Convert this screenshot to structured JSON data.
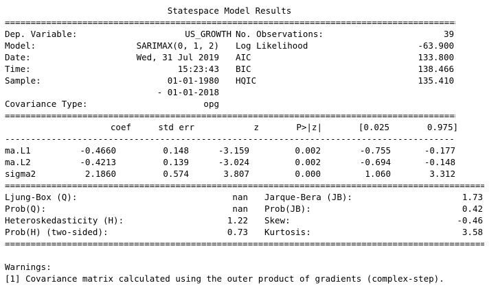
{
  "title": "Statespace Model Results",
  "sep_double": "==================================================================================================================",
  "sep_single": "------------------------------------------------------------------------------------------------------------------",
  "header": {
    "left": [
      {
        "label": "Dep. Variable:",
        "value": "US_GROWTH"
      },
      {
        "label": "Model:",
        "value": "SARIMAX(0, 1, 2)"
      },
      {
        "label": "Date:",
        "value": "Wed, 31 Jul 2019"
      },
      {
        "label": "Time:",
        "value": "15:23:43"
      },
      {
        "label": "Sample:",
        "value": "01-01-1980"
      },
      {
        "label": "",
        "value": "- 01-01-2018"
      },
      {
        "label": "Covariance Type:",
        "value": "opg"
      }
    ],
    "right": [
      {
        "label": "No. Observations:",
        "value": "39"
      },
      {
        "label": "Log Likelihood",
        "value": "-63.900"
      },
      {
        "label": "AIC",
        "value": "133.800"
      },
      {
        "label": "BIC",
        "value": "138.466"
      },
      {
        "label": "HQIC",
        "value": "135.410"
      }
    ]
  },
  "coef_table": {
    "columns": [
      "coef",
      "std err",
      "z",
      "P>|z|",
      "[0.025",
      "0.975]"
    ],
    "rows": [
      {
        "name": "ma.L1",
        "values": [
          "-0.4660",
          "0.148",
          "-3.159",
          "0.002",
          "-0.755",
          "-0.177"
        ]
      },
      {
        "name": "ma.L2",
        "values": [
          "-0.4213",
          "0.139",
          "-3.024",
          "0.002",
          "-0.694",
          "-0.148"
        ]
      },
      {
        "name": "sigma2",
        "values": [
          "2.1860",
          "0.574",
          "3.807",
          "0.000",
          "1.060",
          "3.312"
        ]
      }
    ]
  },
  "diagnostics": {
    "left": [
      {
        "label": "Ljung-Box (Q):",
        "value": "nan"
      },
      {
        "label": "Prob(Q):",
        "value": "nan"
      },
      {
        "label": "Heteroskedasticity (H):",
        "value": "1.22"
      },
      {
        "label": "Prob(H) (two-sided):",
        "value": "0.73"
      }
    ],
    "right": [
      {
        "label": "Jarque-Bera (JB):",
        "value": "1.73"
      },
      {
        "label": "Prob(JB):",
        "value": "0.42"
      },
      {
        "label": "Skew:",
        "value": "-0.46"
      },
      {
        "label": "Kurtosis:",
        "value": "3.58"
      }
    ]
  },
  "warnings": {
    "heading": "Warnings:",
    "items": [
      "[1] Covariance matrix calculated using the outer product of gradients (complex-step)."
    ]
  }
}
